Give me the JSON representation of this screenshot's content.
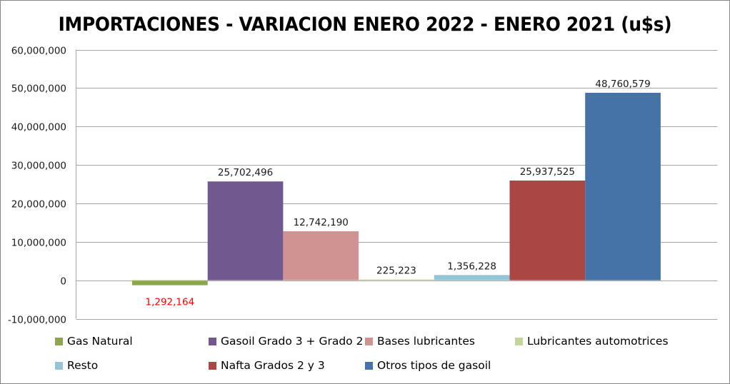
{
  "chart_data": {
    "type": "bar",
    "title": "IMPORTACIONES - VARIACION ENERO 2022 - ENERO 2021 (u$s)",
    "xlabel": "",
    "ylabel": "",
    "ylim": [
      -10000000,
      60000000
    ],
    "yticks": [
      -10000000,
      0,
      10000000,
      20000000,
      30000000,
      40000000,
      50000000,
      60000000
    ],
    "ytick_labels": [
      "-10,000,000",
      "0",
      "10,000,000",
      "20,000,000",
      "30,000,000",
      "40,000,000",
      "50,000,000",
      "60,000,000"
    ],
    "grid": true,
    "legend_position": "bottom",
    "series": [
      {
        "name": "Gas Natural",
        "value": -1292164,
        "label": "1,292,164",
        "color": "#8BA64F",
        "label_color": "#FF0000"
      },
      {
        "name": "Gasoil Grado 3 + Grado 2",
        "value": 25702496,
        "label": "25,702,496",
        "color": "#71588F",
        "label_color": "#1a1a1a"
      },
      {
        "name": "Bases lubricantes",
        "value": 12742190,
        "label": "12,742,190",
        "color": "#D19392",
        "label_color": "#1a1a1a"
      },
      {
        "name": "Lubricantes automotrices",
        "value": 225223,
        "label": "225,223",
        "color": "#C3D69B",
        "label_color": "#1a1a1a"
      },
      {
        "name": "Resto",
        "value": 1356228,
        "label": "1,356,228",
        "color": "#93C5D6",
        "label_color": "#1a1a1a"
      },
      {
        "name": "Nafta Grados 2 y 3",
        "value": 25937525,
        "label": "25,937,525",
        "color": "#AA4643",
        "label_color": "#1a1a1a"
      },
      {
        "name": "Otros tipos de gasoil",
        "value": 48760579,
        "label": "48,760,579",
        "color": "#4572A7",
        "label_color": "#1a1a1a"
      }
    ]
  }
}
